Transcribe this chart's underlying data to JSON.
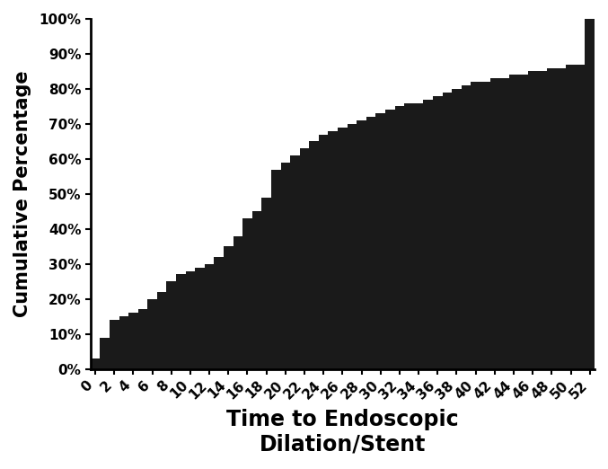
{
  "xlabel": "Time to Endoscopic\nDilation/Stent",
  "ylabel": "Cumulative Percentage",
  "bar_color": "#1a1a1a",
  "background_color": "#ffffff",
  "x_tick_step": 2,
  "ylim": [
    0,
    1.0
  ],
  "yticks": [
    0,
    0.1,
    0.2,
    0.3,
    0.4,
    0.5,
    0.6,
    0.7,
    0.8,
    0.9,
    1.0
  ],
  "ytick_labels": [
    "0%",
    "10%",
    "20%",
    "30%",
    "40%",
    "50%",
    "60%",
    "70%",
    "80%",
    "90%",
    "100%"
  ],
  "values": [
    0.03,
    0.09,
    0.14,
    0.15,
    0.16,
    0.17,
    0.2,
    0.22,
    0.25,
    0.27,
    0.28,
    0.29,
    0.3,
    0.32,
    0.35,
    0.38,
    0.43,
    0.45,
    0.49,
    0.57,
    0.59,
    0.61,
    0.63,
    0.65,
    0.67,
    0.68,
    0.69,
    0.7,
    0.71,
    0.72,
    0.73,
    0.74,
    0.75,
    0.76,
    0.76,
    0.77,
    0.78,
    0.79,
    0.8,
    0.81,
    0.82,
    0.82,
    0.83,
    0.83,
    0.84,
    0.84,
    0.85,
    0.85,
    0.86,
    0.86,
    0.87,
    0.87,
    1.0
  ],
  "xlabel_fontsize": 17,
  "ylabel_fontsize": 15,
  "tick_fontsize": 11,
  "xlabel_fontweight": "bold",
  "ylabel_fontweight": "bold",
  "tick_fontweight": "bold"
}
